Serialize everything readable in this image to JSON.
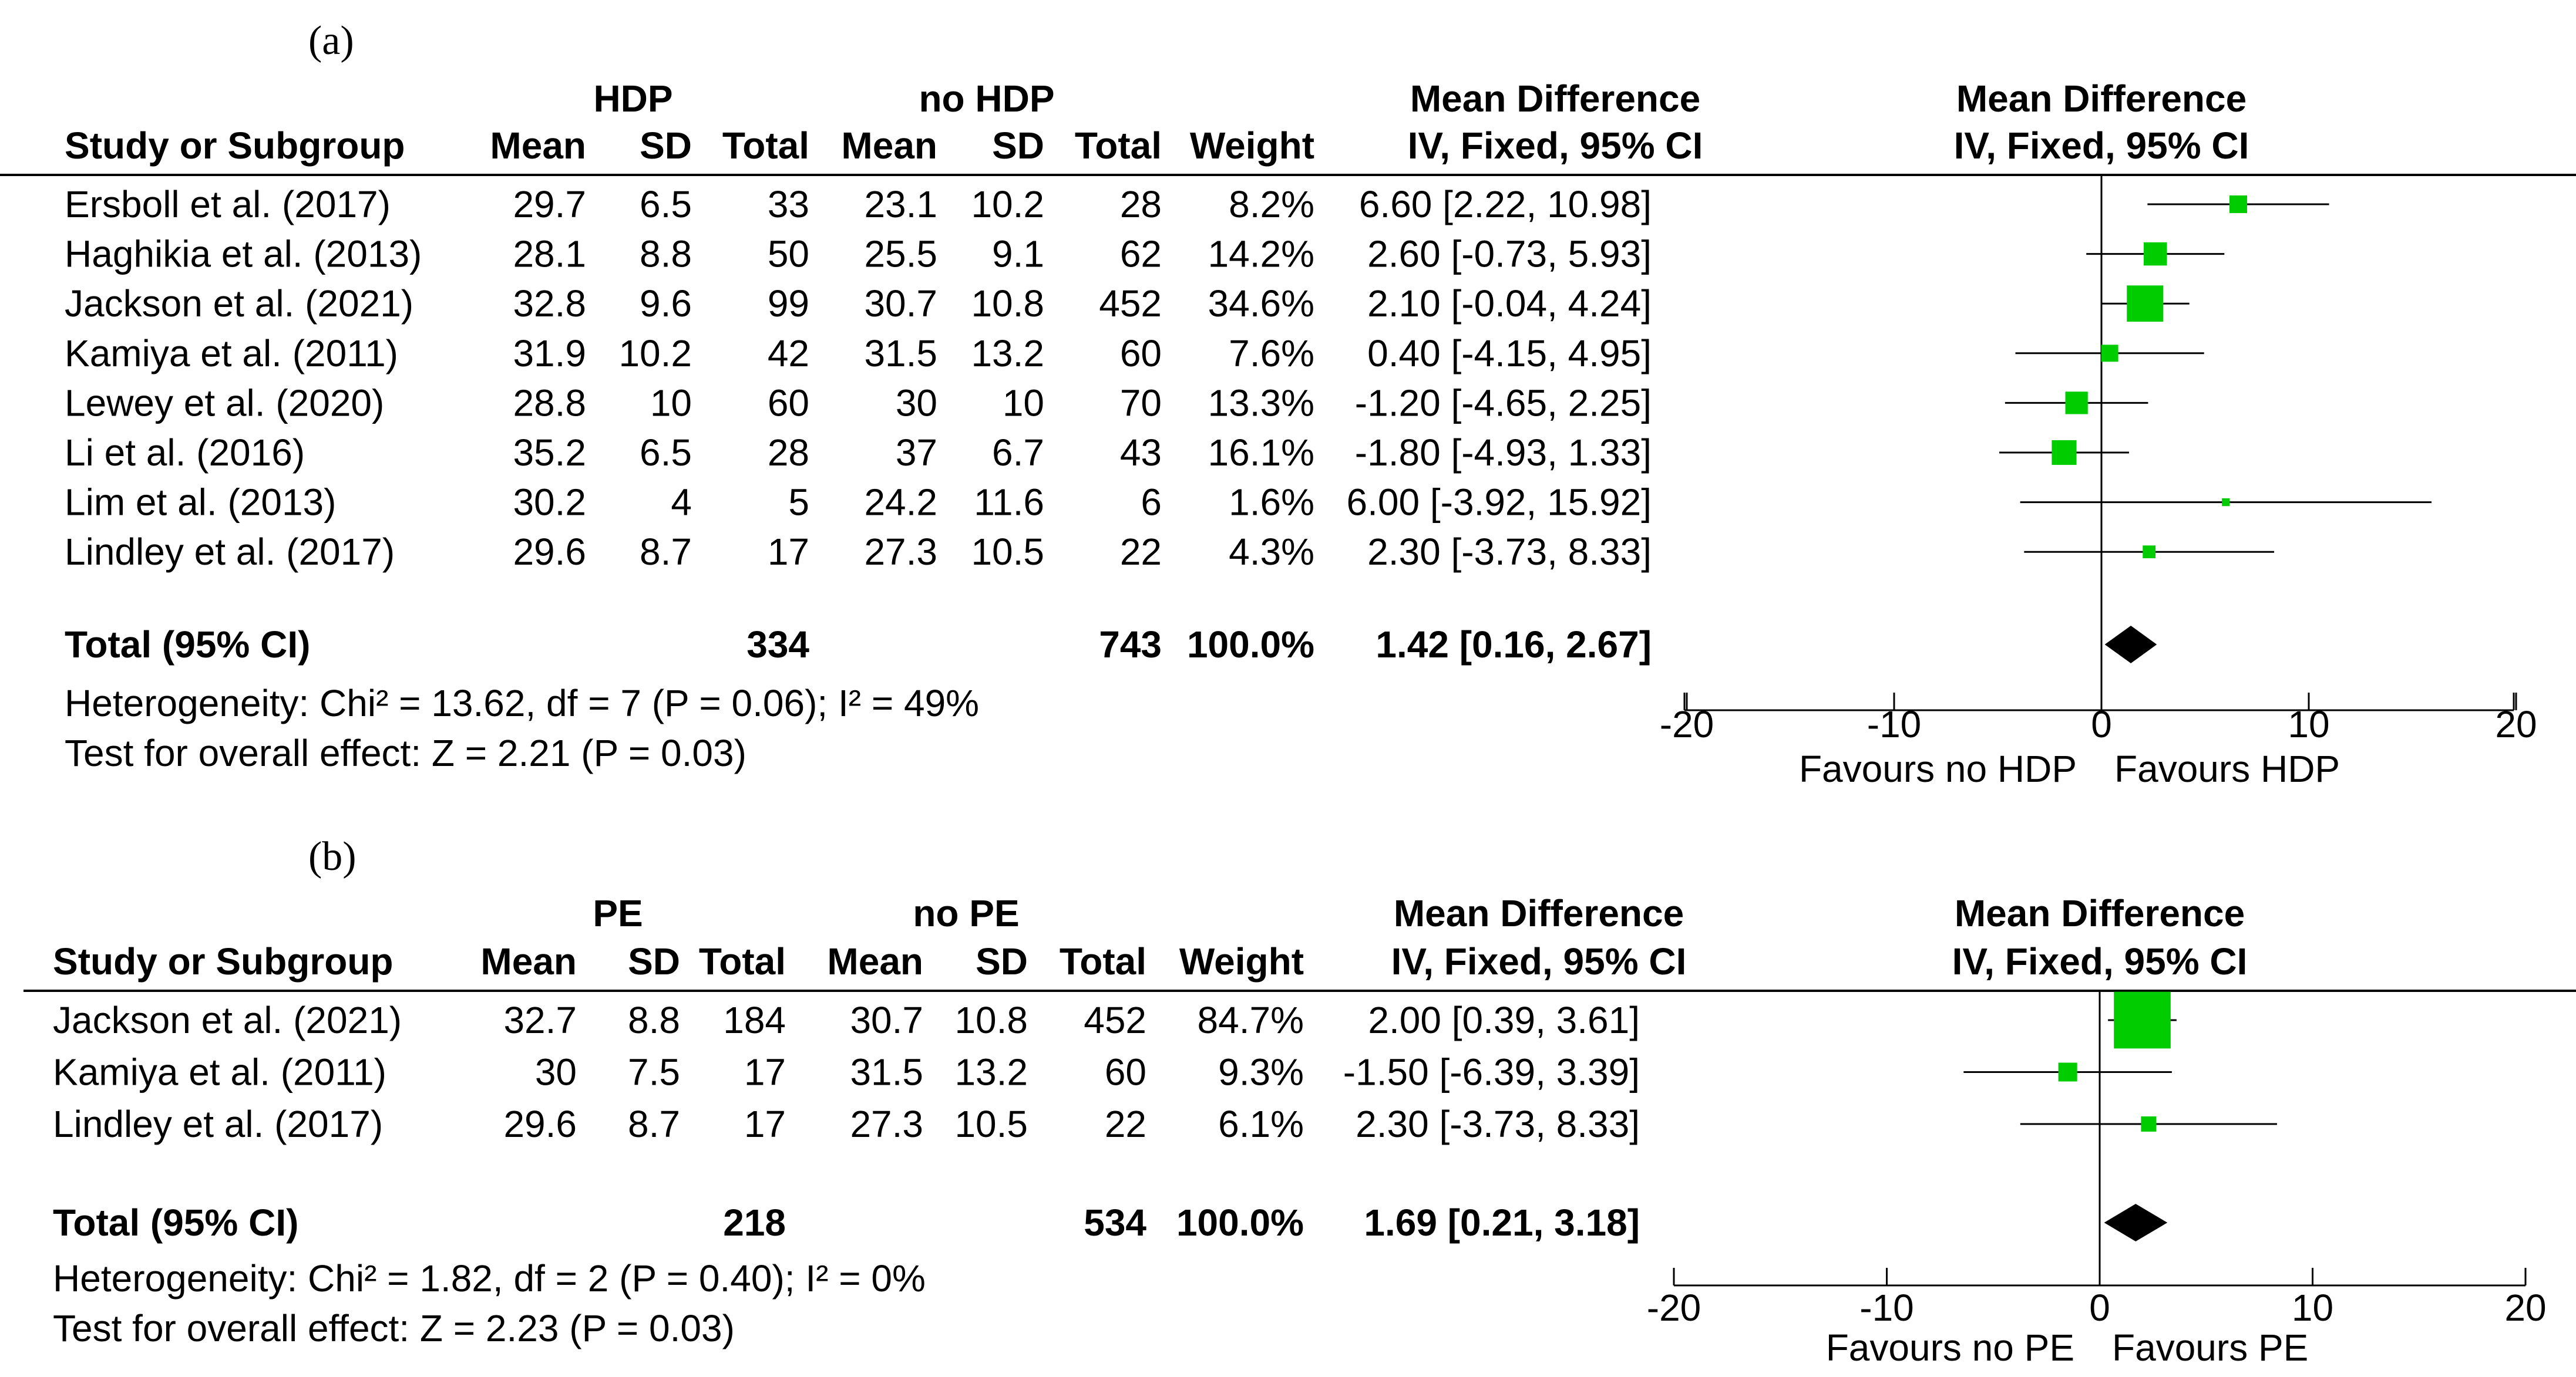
{
  "chart_data": [
    {
      "type": "forest",
      "panel_label": "(a)",
      "group1_label": "HDP",
      "group2_label": "no HDP",
      "effect_header": "Mean Difference",
      "effect_subheader": "IV, Fixed, 95% CI",
      "columns": [
        "Study or Subgroup",
        "Mean",
        "SD",
        "Total",
        "Mean",
        "SD",
        "Total",
        "Weight",
        "IV, Fixed, 95% CI"
      ],
      "studies": [
        {
          "name": "Ersboll et al. (2017)",
          "m1": "29.7",
          "sd1": "6.5",
          "n1": "33",
          "m2": "23.1",
          "sd2": "10.2",
          "n2": "28",
          "weight": "8.2%",
          "ci_text": "6.60 [2.22, 10.98]",
          "md": 6.6,
          "lo": 2.22,
          "hi": 10.98,
          "w": 8.2
        },
        {
          "name": "Haghikia et al. (2013)",
          "m1": "28.1",
          "sd1": "8.8",
          "n1": "50",
          "m2": "25.5",
          "sd2": "9.1",
          "n2": "62",
          "weight": "14.2%",
          "ci_text": "2.60 [-0.73, 5.93]",
          "md": 2.6,
          "lo": -0.73,
          "hi": 5.93,
          "w": 14.2
        },
        {
          "name": "Jackson et al. (2021)",
          "m1": "32.8",
          "sd1": "9.6",
          "n1": "99",
          "m2": "30.7",
          "sd2": "10.8",
          "n2": "452",
          "weight": "34.6%",
          "ci_text": "2.10 [-0.04, 4.24]",
          "md": 2.1,
          "lo": -0.04,
          "hi": 4.24,
          "w": 34.6
        },
        {
          "name": "Kamiya et al. (2011)",
          "m1": "31.9",
          "sd1": "10.2",
          "n1": "42",
          "m2": "31.5",
          "sd2": "13.2",
          "n2": "60",
          "weight": "7.6%",
          "ci_text": "0.40 [-4.15, 4.95]",
          "md": 0.4,
          "lo": -4.15,
          "hi": 4.95,
          "w": 7.6
        },
        {
          "name": "Lewey et al. (2020)",
          "m1": "28.8",
          "sd1": "10",
          "n1": "60",
          "m2": "30",
          "sd2": "10",
          "n2": "70",
          "weight": "13.3%",
          "ci_text": "-1.20 [-4.65, 2.25]",
          "md": -1.2,
          "lo": -4.65,
          "hi": 2.25,
          "w": 13.3
        },
        {
          "name": "Li et al. (2016)",
          "m1": "35.2",
          "sd1": "6.5",
          "n1": "28",
          "m2": "37",
          "sd2": "6.7",
          "n2": "43",
          "weight": "16.1%",
          "ci_text": "-1.80 [-4.93, 1.33]",
          "md": -1.8,
          "lo": -4.93,
          "hi": 1.33,
          "w": 16.1
        },
        {
          "name": "Lim et al. (2013)",
          "m1": "30.2",
          "sd1": "4",
          "n1": "5",
          "m2": "24.2",
          "sd2": "11.6",
          "n2": "6",
          "weight": "1.6%",
          "ci_text": "6.00 [-3.92, 15.92]",
          "md": 6.0,
          "lo": -3.92,
          "hi": 15.92,
          "w": 1.6
        },
        {
          "name": "Lindley et al. (2017)",
          "m1": "29.6",
          "sd1": "8.7",
          "n1": "17",
          "m2": "27.3",
          "sd2": "10.5",
          "n2": "22",
          "weight": "4.3%",
          "ci_text": "2.30 [-3.73, 8.33]",
          "md": 2.3,
          "lo": -3.73,
          "hi": 8.33,
          "w": 4.3
        }
      ],
      "total": {
        "label": "Total (95% CI)",
        "n1": "334",
        "n2": "743",
        "weight": "100.0%",
        "ci_text": "1.42 [0.16, 2.67]",
        "md": 1.42,
        "lo": 0.16,
        "hi": 2.67
      },
      "heterogeneity": "Heterogeneity: Chi² = 13.62, df = 7 (P = 0.06); I² = 49%",
      "overall_test": "Test for overall effect: Z = 2.21 (P = 0.03)",
      "axis": {
        "min": -20,
        "max": 20,
        "ticks": [
          -20,
          -10,
          0,
          10,
          20
        ],
        "tick_labels": [
          "-20",
          "-10",
          "0",
          "10",
          "20"
        ]
      },
      "favours_left": "Favours no HDP",
      "favours_right": "Favours HDP",
      "marker_color": "#00cc00"
    },
    {
      "type": "forest",
      "panel_label": "(b)",
      "group1_label": "PE",
      "group2_label": "no PE",
      "effect_header": "Mean Difference",
      "effect_subheader": "IV, Fixed, 95% CI",
      "columns": [
        "Study or Subgroup",
        "Mean",
        "SD",
        "Total",
        "Mean",
        "SD",
        "Total",
        "Weight",
        "IV, Fixed, 95% CI"
      ],
      "studies": [
        {
          "name": "Jackson et al. (2021)",
          "m1": "32.7",
          "sd1": "8.8",
          "n1": "184",
          "m2": "30.7",
          "sd2": "10.8",
          "n2": "452",
          "weight": "84.7%",
          "ci_text": "2.00 [0.39, 3.61]",
          "md": 2.0,
          "lo": 0.39,
          "hi": 3.61,
          "w": 84.7
        },
        {
          "name": "Kamiya et al. (2011)",
          "m1": "30",
          "sd1": "7.5",
          "n1": "17",
          "m2": "31.5",
          "sd2": "13.2",
          "n2": "60",
          "weight": "9.3%",
          "ci_text": "-1.50 [-6.39, 3.39]",
          "md": -1.5,
          "lo": -6.39,
          "hi": 3.39,
          "w": 9.3
        },
        {
          "name": "Lindley et al. (2017)",
          "m1": "29.6",
          "sd1": "8.7",
          "n1": "17",
          "m2": "27.3",
          "sd2": "10.5",
          "n2": "22",
          "weight": "6.1%",
          "ci_text": "2.30 [-3.73, 8.33]",
          "md": 2.3,
          "lo": -3.73,
          "hi": 8.33,
          "w": 6.1
        }
      ],
      "total": {
        "label": "Total (95% CI)",
        "n1": "218",
        "n2": "534",
        "weight": "100.0%",
        "ci_text": "1.69 [0.21, 3.18]",
        "md": 1.69,
        "lo": 0.21,
        "hi": 3.18
      },
      "heterogeneity": "Heterogeneity: Chi² = 1.82, df = 2 (P = 0.40); I² = 0%",
      "overall_test": "Test for overall effect: Z = 2.23 (P = 0.03)",
      "axis": {
        "min": -20,
        "max": 20,
        "ticks": [
          -20,
          -10,
          0,
          10,
          20
        ],
        "tick_labels": [
          "-20",
          "-10",
          "0",
          "10",
          "20"
        ]
      },
      "favours_left": "Favours no PE",
      "favours_right": "Favours PE",
      "marker_color": "#00cc00"
    }
  ]
}
